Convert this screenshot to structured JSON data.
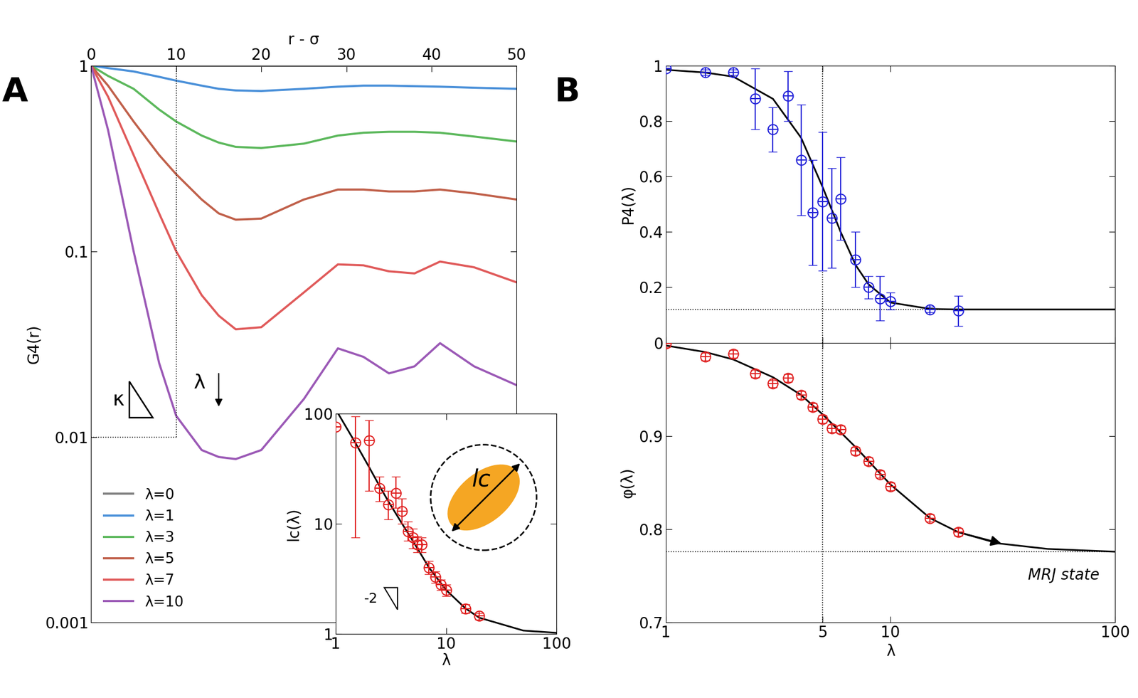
{
  "chart_data": [
    {
      "type": "line",
      "panel_label": "A",
      "xlabel": "r - σ",
      "ylabel": "G4(r)",
      "log": "y",
      "legend": "lower left",
      "xlim": [
        0,
        50
      ],
      "xticks": [
        0,
        10,
        20,
        30,
        40,
        50
      ],
      "ylim": [
        0.001,
        1
      ],
      "yticks": [
        0.001,
        0.01,
        0.1,
        1
      ],
      "guide_x": 10,
      "guide_y": 0.01,
      "annotations": [
        "κ",
        "λ"
      ],
      "x": [
        0,
        2,
        5,
        8,
        10,
        13,
        15,
        17,
        20,
        25,
        29,
        32,
        35,
        38,
        41,
        45,
        50
      ],
      "series": [
        {
          "name": "λ=0",
          "color": "#808080",
          "values": [
            1,
            1,
            1,
            1,
            1,
            1,
            1,
            1,
            1,
            1,
            1,
            1,
            1,
            1,
            1,
            1,
            1
          ]
        },
        {
          "name": "λ=1",
          "color": "#4a90d9",
          "values": [
            1,
            0.97,
            0.93,
            0.87,
            0.83,
            0.78,
            0.75,
            0.735,
            0.73,
            0.75,
            0.77,
            0.78,
            0.78,
            0.775,
            0.77,
            0.76,
            0.75
          ]
        },
        {
          "name": "λ=3",
          "color": "#5cb85c",
          "values": [
            1,
            0.88,
            0.75,
            0.58,
            0.5,
            0.42,
            0.385,
            0.365,
            0.36,
            0.38,
            0.42,
            0.435,
            0.44,
            0.44,
            0.435,
            0.415,
            0.39
          ]
        },
        {
          "name": "λ=5",
          "color": "#c0604a",
          "values": [
            1,
            0.78,
            0.5,
            0.33,
            0.26,
            0.19,
            0.16,
            0.148,
            0.15,
            0.19,
            0.215,
            0.215,
            0.21,
            0.21,
            0.215,
            0.205,
            0.19
          ]
        },
        {
          "name": "λ=7",
          "color": "#e05a5a",
          "values": [
            1,
            0.68,
            0.33,
            0.16,
            0.1,
            0.058,
            0.045,
            0.038,
            0.039,
            0.06,
            0.085,
            0.084,
            0.078,
            0.076,
            0.088,
            0.082,
            0.068
          ]
        },
        {
          "name": "λ=10",
          "color": "#9b59b6",
          "values": [
            1,
            0.45,
            0.1,
            0.025,
            0.013,
            0.0085,
            0.0078,
            0.0076,
            0.0085,
            0.016,
            0.03,
            0.027,
            0.022,
            0.024,
            0.032,
            0.024,
            0.019
          ]
        }
      ]
    },
    {
      "type": "scatter",
      "xlabel": "λ",
      "ylabel": "lc(λ)",
      "log": true,
      "color": "#e02020",
      "marker": "circle_plus",
      "xlim": [
        1,
        100
      ],
      "xticks": [
        1,
        10,
        100
      ],
      "ylim": [
        1,
        100
      ],
      "yticks": [
        1,
        10,
        100
      ],
      "annotations": [
        "-2",
        "lc"
      ],
      "x": [
        1,
        1.5,
        2,
        2.5,
        3,
        3.5,
        4,
        4.5,
        5,
        5.5,
        6,
        7,
        8,
        9,
        10,
        15,
        20
      ],
      "values": [
        76,
        55,
        57,
        21,
        15,
        19,
        13,
        8.5,
        7.5,
        6.5,
        6.5,
        4,
        3.3,
        2.8,
        2.5,
        1.7,
        1.45
      ],
      "error_low": [
        0,
        47.5,
        37,
        5,
        4,
        5,
        3,
        1.5,
        1.5,
        1,
        1,
        0.5,
        0.4,
        0.3,
        0.3,
        0.15,
        0.1
      ],
      "error_high": [
        0,
        40,
        31,
        6,
        5,
        8,
        4,
        2,
        1.5,
        1.2,
        1,
        0.6,
        0.4,
        0.3,
        0.3,
        0.15,
        0.1
      ],
      "fit": {
        "x": [
          1,
          1.5,
          2,
          2.5,
          3,
          4,
          5,
          7,
          10,
          15,
          20,
          50,
          100
        ],
        "values": [
          110,
          55,
          33,
          22,
          16,
          10,
          7,
          4,
          2.5,
          1.7,
          1.4,
          1.07,
          1.02
        ]
      }
    },
    {
      "type": "scatter",
      "panel_label": "B",
      "ylabel": "P4(λ)",
      "log": "x",
      "color": "#2020d8",
      "marker": "circle_plus",
      "tick_labels": "y",
      "xlim": [
        1,
        100
      ],
      "xticks": [
        1,
        5,
        10,
        100
      ],
      "ylim": [
        0,
        1
      ],
      "yticks": [
        0,
        0.2,
        0.4,
        0.6,
        0.8,
        1
      ],
      "guide_x": 5,
      "guide_y": 0.12,
      "x": [
        1,
        1.5,
        2,
        2.5,
        3,
        3.5,
        4,
        4.5,
        5,
        5.5,
        6,
        7,
        8,
        9,
        10,
        15,
        20
      ],
      "values": [
        0.99,
        0.975,
        0.975,
        0.88,
        0.77,
        0.89,
        0.66,
        0.47,
        0.51,
        0.45,
        0.52,
        0.3,
        0.2,
        0.16,
        0.15,
        0.12,
        0.115
      ],
      "errors": [
        0,
        0.01,
        0.01,
        0.11,
        0.08,
        0.09,
        0.2,
        0.19,
        0.25,
        0.18,
        0.15,
        0.1,
        0.04,
        0.08,
        0.03,
        0.01,
        0.055
      ],
      "fit": {
        "x": [
          1,
          1.5,
          2,
          3,
          4,
          5,
          6,
          7,
          8,
          10,
          15,
          20,
          30,
          50,
          100
        ],
        "values": [
          0.985,
          0.975,
          0.96,
          0.88,
          0.74,
          0.56,
          0.4,
          0.28,
          0.21,
          0.145,
          0.122,
          0.12,
          0.12,
          0.12,
          0.12
        ]
      }
    },
    {
      "type": "scatter",
      "xlabel": "λ",
      "ylabel": "φ(λ)",
      "log": "x",
      "color": "#e02020",
      "marker": "circle_plus",
      "xlim": [
        1,
        100
      ],
      "xticks": [
        1,
        5,
        10,
        100
      ],
      "ylim": [
        0.7,
        1
      ],
      "yticks": [
        0.7,
        0.8,
        0.9
      ],
      "guide_x": 5,
      "guide_y": 0.776,
      "annotations": [
        "MRJ state"
      ],
      "x": [
        1,
        1.5,
        2,
        2.5,
        3,
        3.5,
        4,
        4.5,
        5,
        5.5,
        6,
        7,
        8,
        9,
        10,
        15,
        20
      ],
      "values": [
        0.999,
        0.985,
        0.988,
        0.967,
        0.956,
        0.962,
        0.944,
        0.931,
        0.918,
        0.908,
        0.907,
        0.884,
        0.873,
        0.859,
        0.846,
        0.812,
        0.797
      ],
      "errors": [
        0.004,
        0.004,
        0.004,
        0.004,
        0.004,
        0.004,
        0.004,
        0.004,
        0.004,
        0.004,
        0.004,
        0.004,
        0.004,
        0.004,
        0.004,
        0.004,
        0.004
      ],
      "fit": {
        "x": [
          1,
          1.5,
          2,
          3,
          4,
          5,
          6,
          7,
          8,
          10,
          15,
          20,
          30,
          50,
          100
        ],
        "values": [
          0.997,
          0.99,
          0.982,
          0.963,
          0.944,
          0.923,
          0.904,
          0.888,
          0.873,
          0.848,
          0.812,
          0.797,
          0.785,
          0.779,
          0.776
        ]
      }
    }
  ]
}
